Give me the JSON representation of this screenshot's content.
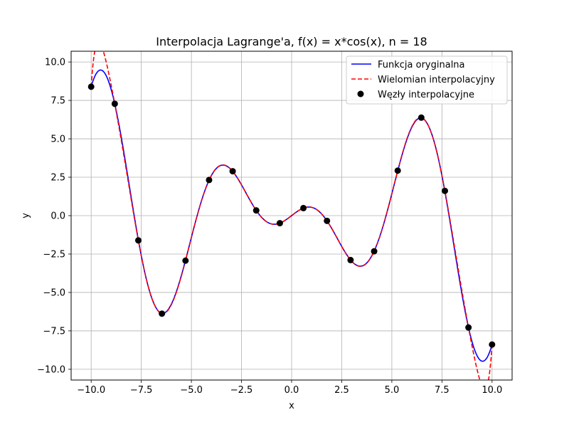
{
  "chart_data": {
    "type": "line",
    "title": "Interpolacja Lagrange'a, f(x) = x*cos(x), n = 18",
    "xlabel": "x",
    "ylabel": "y",
    "xlim": [
      -11.0,
      11.0
    ],
    "ylim": [
      -10.7,
      10.7
    ],
    "xticks": [
      -10.0,
      -7.5,
      -5.0,
      -2.5,
      0.0,
      2.5,
      5.0,
      7.5,
      10.0
    ],
    "xtick_labels": [
      "−10.0",
      "−7.5",
      "−5.0",
      "−2.5",
      "0.0",
      "2.5",
      "5.0",
      "7.5",
      "10.0"
    ],
    "yticks": [
      -10.0,
      -7.5,
      -5.0,
      -2.5,
      0.0,
      2.5,
      5.0,
      7.5,
      10.0
    ],
    "ytick_labels": [
      "−10.0",
      "−7.5",
      "−5.0",
      "−2.5",
      "0.0",
      "2.5",
      "5.0",
      "7.5",
      "10.0"
    ],
    "grid": true,
    "legend_position": "top-right",
    "series": [
      {
        "name": "Funkcja oryginalna",
        "style": "solid",
        "color": "#0000ff",
        "function": "x*cos(x)",
        "x_range": [
          -10.0,
          10.0
        ]
      },
      {
        "name": "Wielomian interpolacyjny",
        "style": "dashed",
        "color": "#ff0000",
        "x_range": [
          -10.0,
          10.0
        ]
      },
      {
        "name": "Węzły interpolacyjne",
        "style": "markers",
        "color": "#000000",
        "x": [
          -10.0,
          -8.8235,
          -7.6471,
          -6.4706,
          -5.2941,
          -4.1176,
          -2.9412,
          -1.7647,
          -0.5882,
          0.5882,
          1.7647,
          2.9412,
          4.1176,
          5.2941,
          6.4706,
          7.6471,
          8.8235,
          10.0
        ],
        "y": [
          8.39,
          7.28,
          -1.61,
          -6.38,
          -2.93,
          2.32,
          2.89,
          0.34,
          -0.49,
          0.49,
          -0.34,
          -2.89,
          -2.32,
          2.93,
          6.38,
          1.61,
          -7.28,
          -8.39
        ]
      }
    ]
  }
}
